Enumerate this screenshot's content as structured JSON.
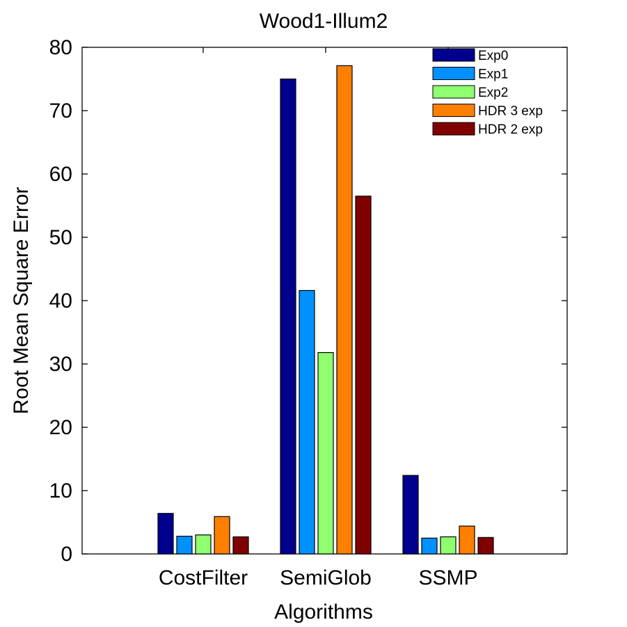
{
  "chart_data": {
    "type": "bar",
    "title": "Wood1-Illum2",
    "xlabel": "Algorithms",
    "ylabel": "Root Mean Square Error",
    "categories": [
      "CostFilter",
      "SemiGlob",
      "SSMP"
    ],
    "ylim": [
      0,
      80
    ],
    "yticks": [
      0,
      10,
      20,
      30,
      40,
      50,
      60,
      70,
      80
    ],
    "grid": false,
    "legend_position": "top-right",
    "series": [
      {
        "name": "Exp0",
        "color": "#00008F",
        "values": [
          6.4,
          75.0,
          12.4
        ]
      },
      {
        "name": "Exp1",
        "color": "#0090FF",
        "values": [
          2.8,
          41.6,
          2.5
        ]
      },
      {
        "name": "Exp2",
        "color": "#8FFF70",
        "values": [
          3.0,
          31.8,
          2.7
        ]
      },
      {
        "name": "HDR 3 exp",
        "color": "#FF7F00",
        "values": [
          5.9,
          77.1,
          4.4
        ]
      },
      {
        "name": "HDR 2 exp",
        "color": "#800000",
        "values": [
          2.7,
          56.5,
          2.6
        ]
      }
    ]
  }
}
